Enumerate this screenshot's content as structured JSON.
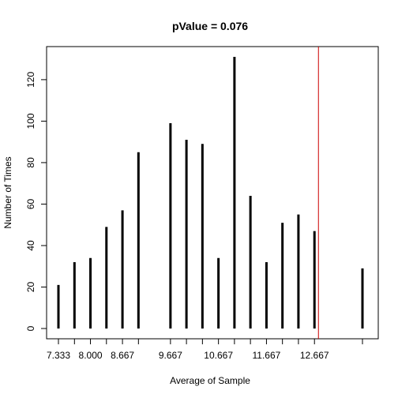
{
  "chart_data": {
    "type": "bar",
    "title": "pValue = 0.076",
    "xlabel": "Average of Sample",
    "ylabel": "Number of Times",
    "x": [
      7.333,
      7.667,
      8.0,
      8.333,
      8.667,
      9.0,
      9.667,
      10.0,
      10.333,
      10.667,
      11.0,
      11.333,
      11.667,
      12.0,
      12.333,
      12.667,
      13.667
    ],
    "values": [
      21,
      32,
      34,
      49,
      57,
      85,
      99,
      91,
      89,
      34,
      131,
      64,
      32,
      51,
      55,
      47,
      29
    ],
    "xlim": [
      7.333,
      13.667
    ],
    "ylim": [
      0,
      131
    ],
    "x_ticks": [
      7.333,
      7.667,
      8.0,
      8.333,
      8.667,
      9.0,
      9.667,
      10.0,
      10.333,
      10.667,
      11.0,
      11.333,
      11.667,
      12.0,
      12.333,
      12.667,
      13.667
    ],
    "x_tick_labels": [
      "7.333",
      "",
      "8.000",
      "",
      "8.667",
      "",
      "9.667",
      "",
      "",
      "10.667",
      "",
      "",
      "11.667",
      "",
      "",
      "12.667",
      ""
    ],
    "y_ticks": [
      0,
      20,
      40,
      60,
      80,
      100,
      120
    ],
    "y_tick_labels": [
      "0",
      "20",
      "40",
      "60",
      "80",
      "100",
      "120"
    ],
    "reference_line": {
      "x": 12.75,
      "color": "#cc0000"
    },
    "bar_color": "#000000",
    "grid": false
  }
}
